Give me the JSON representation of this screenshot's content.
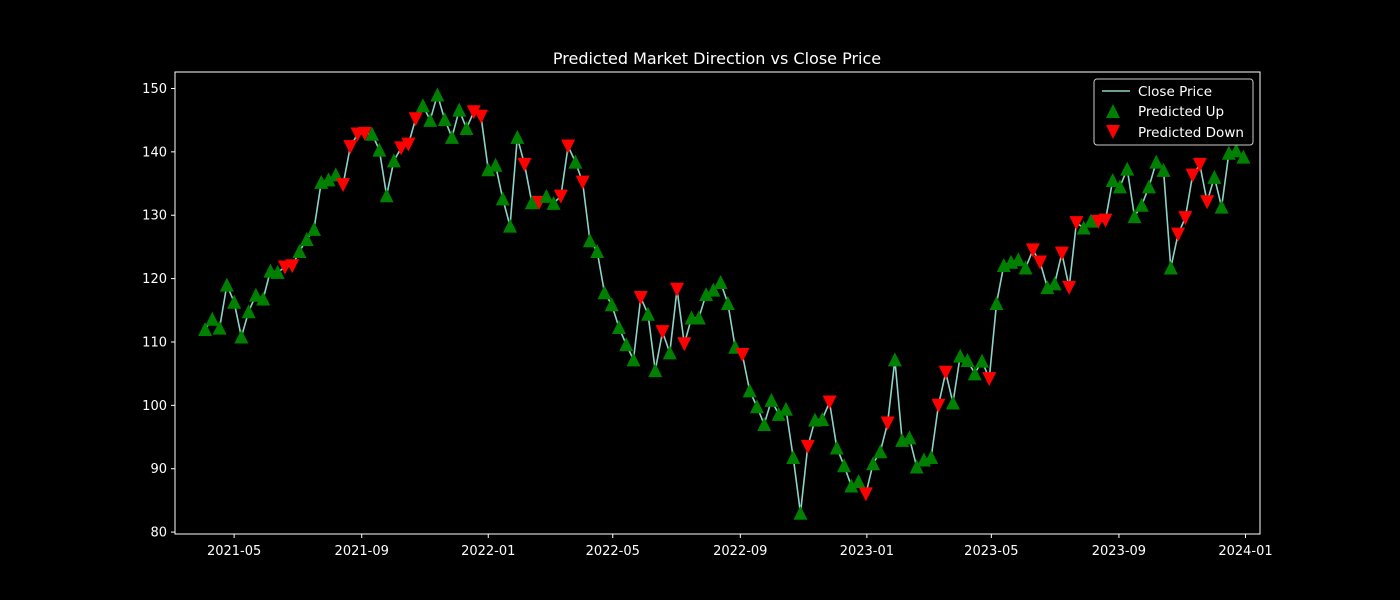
{
  "chart_data": {
    "type": "line",
    "title": "Predicted Market Direction vs Close Price",
    "xlabel": "",
    "ylabel": "",
    "x_tick_labels": [
      "2021-05",
      "2021-09",
      "2022-01",
      "2022-05",
      "2022-09",
      "2023-01",
      "2023-05",
      "2023-09",
      "2024-01"
    ],
    "x_tick_dates": [
      "2021-05-01",
      "2021-09-01",
      "2022-01-01",
      "2022-05-01",
      "2022-09-01",
      "2023-01-01",
      "2023-05-01",
      "2023-09-01",
      "2024-01-01"
    ],
    "y_ticks": [
      80,
      90,
      100,
      110,
      120,
      130,
      140,
      150
    ],
    "ylim": [
      79.7,
      152.6
    ],
    "xlim": [
      "2021-03-05",
      "2024-01-15"
    ],
    "grid": false,
    "legend_position": "top-right",
    "colors": {
      "background": "#000000",
      "line": "#8dd3c7",
      "up": "#008000",
      "down": "#ff0000",
      "text": "#ffffff"
    },
    "series": [
      {
        "name": "Close Price",
        "kind": "line",
        "points": [
          {
            "x": "2021-04-03",
            "y": 112.0,
            "d": "up"
          },
          {
            "x": "2021-04-10",
            "y": 113.6,
            "d": "up"
          },
          {
            "x": "2021-04-17",
            "y": 112.2,
            "d": "up"
          },
          {
            "x": "2021-04-24",
            "y": 119.0,
            "d": "up"
          },
          {
            "x": "2021-05-01",
            "y": 116.3,
            "d": "up"
          },
          {
            "x": "2021-05-08",
            "y": 110.8,
            "d": "up"
          },
          {
            "x": "2021-05-15",
            "y": 114.8,
            "d": "up"
          },
          {
            "x": "2021-05-22",
            "y": 117.4,
            "d": "up"
          },
          {
            "x": "2021-05-29",
            "y": 116.8,
            "d": "up"
          },
          {
            "x": "2021-06-05",
            "y": 121.2,
            "d": "up"
          },
          {
            "x": "2021-06-12",
            "y": 121.0,
            "d": "up"
          },
          {
            "x": "2021-06-19",
            "y": 121.8,
            "d": "down"
          },
          {
            "x": "2021-06-26",
            "y": 122.0,
            "d": "down"
          },
          {
            "x": "2021-07-03",
            "y": 124.3,
            "d": "up"
          },
          {
            "x": "2021-07-10",
            "y": 126.2,
            "d": "up"
          },
          {
            "x": "2021-07-17",
            "y": 127.8,
            "d": "up"
          },
          {
            "x": "2021-07-24",
            "y": 135.2,
            "d": "up"
          },
          {
            "x": "2021-07-31",
            "y": 135.6,
            "d": "up"
          },
          {
            "x": "2021-08-07",
            "y": 136.4,
            "d": "up"
          },
          {
            "x": "2021-08-14",
            "y": 134.8,
            "d": "down"
          },
          {
            "x": "2021-08-21",
            "y": 140.8,
            "d": "down"
          },
          {
            "x": "2021-08-28",
            "y": 142.8,
            "d": "down"
          },
          {
            "x": "2021-09-04",
            "y": 142.9,
            "d": "down"
          },
          {
            "x": "2021-09-11",
            "y": 142.8,
            "d": "up"
          },
          {
            "x": "2021-09-18",
            "y": 140.3,
            "d": "up"
          },
          {
            "x": "2021-09-25",
            "y": 133.1,
            "d": "up"
          },
          {
            "x": "2021-10-02",
            "y": 138.6,
            "d": "up"
          },
          {
            "x": "2021-10-09",
            "y": 140.6,
            "d": "down"
          },
          {
            "x": "2021-10-16",
            "y": 141.2,
            "d": "down"
          },
          {
            "x": "2021-10-23",
            "y": 145.2,
            "d": "down"
          },
          {
            "x": "2021-10-30",
            "y": 147.3,
            "d": "up"
          },
          {
            "x": "2021-11-06",
            "y": 145.0,
            "d": "up"
          },
          {
            "x": "2021-11-13",
            "y": 149.0,
            "d": "up"
          },
          {
            "x": "2021-11-20",
            "y": 145.1,
            "d": "up"
          },
          {
            "x": "2021-11-27",
            "y": 142.3,
            "d": "up"
          },
          {
            "x": "2021-12-04",
            "y": 146.6,
            "d": "up"
          },
          {
            "x": "2021-12-11",
            "y": 143.7,
            "d": "up"
          },
          {
            "x": "2021-12-18",
            "y": 146.3,
            "d": "down"
          },
          {
            "x": "2021-12-25",
            "y": 145.6,
            "d": "down"
          },
          {
            "x": "2022-01-01",
            "y": 137.2,
            "d": "up"
          },
          {
            "x": "2022-01-08",
            "y": 137.9,
            "d": "up"
          },
          {
            "x": "2022-01-15",
            "y": 132.6,
            "d": "up"
          },
          {
            "x": "2022-01-22",
            "y": 128.3,
            "d": "up"
          },
          {
            "x": "2022-01-29",
            "y": 142.3,
            "d": "up"
          },
          {
            "x": "2022-02-05",
            "y": 138.0,
            "d": "down"
          },
          {
            "x": "2022-02-12",
            "y": 132.0,
            "d": "up"
          },
          {
            "x": "2022-02-19",
            "y": 132.0,
            "d": "down"
          },
          {
            "x": "2022-02-26",
            "y": 133.0,
            "d": "up"
          },
          {
            "x": "2022-03-05",
            "y": 131.9,
            "d": "up"
          },
          {
            "x": "2022-03-12",
            "y": 133.0,
            "d": "down"
          },
          {
            "x": "2022-03-19",
            "y": 140.9,
            "d": "down"
          },
          {
            "x": "2022-03-26",
            "y": 138.4,
            "d": "up"
          },
          {
            "x": "2022-04-02",
            "y": 135.2,
            "d": "down"
          },
          {
            "x": "2022-04-09",
            "y": 126.0,
            "d": "up"
          },
          {
            "x": "2022-04-16",
            "y": 124.3,
            "d": "up"
          },
          {
            "x": "2022-04-23",
            "y": 117.8,
            "d": "up"
          },
          {
            "x": "2022-04-30",
            "y": 115.9,
            "d": "up"
          },
          {
            "x": "2022-05-07",
            "y": 112.3,
            "d": "up"
          },
          {
            "x": "2022-05-14",
            "y": 109.6,
            "d": "up"
          },
          {
            "x": "2022-05-21",
            "y": 107.2,
            "d": "up"
          },
          {
            "x": "2022-05-28",
            "y": 117.0,
            "d": "down"
          },
          {
            "x": "2022-06-04",
            "y": 114.4,
            "d": "up"
          },
          {
            "x": "2022-06-11",
            "y": 105.5,
            "d": "up"
          },
          {
            "x": "2022-06-18",
            "y": 111.6,
            "d": "down"
          },
          {
            "x": "2022-06-25",
            "y": 108.3,
            "d": "up"
          },
          {
            "x": "2022-07-02",
            "y": 118.3,
            "d": "down"
          },
          {
            "x": "2022-07-09",
            "y": 109.7,
            "d": "down"
          },
          {
            "x": "2022-07-16",
            "y": 113.8,
            "d": "up"
          },
          {
            "x": "2022-07-23",
            "y": 113.8,
            "d": "up"
          },
          {
            "x": "2022-07-30",
            "y": 117.5,
            "d": "up"
          },
          {
            "x": "2022-08-06",
            "y": 118.2,
            "d": "up"
          },
          {
            "x": "2022-08-13",
            "y": 119.4,
            "d": "up"
          },
          {
            "x": "2022-08-20",
            "y": 116.1,
            "d": "up"
          },
          {
            "x": "2022-08-27",
            "y": 109.2,
            "d": "up"
          },
          {
            "x": "2022-09-03",
            "y": 108.0,
            "d": "down"
          },
          {
            "x": "2022-09-10",
            "y": 102.3,
            "d": "up"
          },
          {
            "x": "2022-09-17",
            "y": 99.8,
            "d": "up"
          },
          {
            "x": "2022-09-24",
            "y": 97.0,
            "d": "up"
          },
          {
            "x": "2022-10-01",
            "y": 100.8,
            "d": "up"
          },
          {
            "x": "2022-10-08",
            "y": 98.6,
            "d": "up"
          },
          {
            "x": "2022-10-15",
            "y": 99.4,
            "d": "up"
          },
          {
            "x": "2022-10-22",
            "y": 91.8,
            "d": "up"
          },
          {
            "x": "2022-10-29",
            "y": 83.0,
            "d": "up"
          },
          {
            "x": "2022-11-05",
            "y": 93.5,
            "d": "down"
          },
          {
            "x": "2022-11-12",
            "y": 97.7,
            "d": "up"
          },
          {
            "x": "2022-11-19",
            "y": 97.8,
            "d": "up"
          },
          {
            "x": "2022-11-26",
            "y": 100.5,
            "d": "down"
          },
          {
            "x": "2022-12-03",
            "y": 93.3,
            "d": "up"
          },
          {
            "x": "2022-12-10",
            "y": 90.5,
            "d": "up"
          },
          {
            "x": "2022-12-17",
            "y": 87.3,
            "d": "up"
          },
          {
            "x": "2022-12-24",
            "y": 88.0,
            "d": "up"
          },
          {
            "x": "2022-12-31",
            "y": 86.0,
            "d": "down"
          },
          {
            "x": "2023-01-07",
            "y": 90.8,
            "d": "up"
          },
          {
            "x": "2023-01-14",
            "y": 92.7,
            "d": "up"
          },
          {
            "x": "2023-01-21",
            "y": 97.2,
            "d": "down"
          },
          {
            "x": "2023-01-28",
            "y": 107.2,
            "d": "up"
          },
          {
            "x": "2023-02-04",
            "y": 94.5,
            "d": "up"
          },
          {
            "x": "2023-02-11",
            "y": 94.9,
            "d": "up"
          },
          {
            "x": "2023-02-18",
            "y": 90.3,
            "d": "up"
          },
          {
            "x": "2023-02-25",
            "y": 91.4,
            "d": "up"
          },
          {
            "x": "2023-03-04",
            "y": 91.8,
            "d": "up"
          },
          {
            "x": "2023-03-11",
            "y": 100.0,
            "d": "down"
          },
          {
            "x": "2023-03-18",
            "y": 105.2,
            "d": "down"
          },
          {
            "x": "2023-03-25",
            "y": 100.4,
            "d": "up"
          },
          {
            "x": "2023-04-01",
            "y": 107.8,
            "d": "up"
          },
          {
            "x": "2023-04-08",
            "y": 107.1,
            "d": "up"
          },
          {
            "x": "2023-04-15",
            "y": 105.0,
            "d": "up"
          },
          {
            "x": "2023-04-22",
            "y": 107.0,
            "d": "up"
          },
          {
            "x": "2023-04-29",
            "y": 104.2,
            "d": "down"
          },
          {
            "x": "2023-05-06",
            "y": 116.1,
            "d": "up"
          },
          {
            "x": "2023-05-13",
            "y": 122.1,
            "d": "up"
          },
          {
            "x": "2023-05-20",
            "y": 122.6,
            "d": "up"
          },
          {
            "x": "2023-05-27",
            "y": 123.0,
            "d": "up"
          },
          {
            "x": "2023-06-03",
            "y": 121.7,
            "d": "up"
          },
          {
            "x": "2023-06-10",
            "y": 124.5,
            "d": "down"
          },
          {
            "x": "2023-06-17",
            "y": 122.6,
            "d": "down"
          },
          {
            "x": "2023-06-24",
            "y": 118.6,
            "d": "up"
          },
          {
            "x": "2023-07-01",
            "y": 119.2,
            "d": "up"
          },
          {
            "x": "2023-07-08",
            "y": 124.0,
            "d": "down"
          },
          {
            "x": "2023-07-15",
            "y": 118.6,
            "d": "down"
          },
          {
            "x": "2023-07-22",
            "y": 128.8,
            "d": "down"
          },
          {
            "x": "2023-07-29",
            "y": 128.0,
            "d": "up"
          },
          {
            "x": "2023-08-05",
            "y": 129.1,
            "d": "up"
          },
          {
            "x": "2023-08-12",
            "y": 129.0,
            "d": "down"
          },
          {
            "x": "2023-08-19",
            "y": 129.2,
            "d": "down"
          },
          {
            "x": "2023-08-26",
            "y": 135.5,
            "d": "up"
          },
          {
            "x": "2023-09-02",
            "y": 134.5,
            "d": "up"
          },
          {
            "x": "2023-09-09",
            "y": 137.3,
            "d": "up"
          },
          {
            "x": "2023-09-16",
            "y": 129.8,
            "d": "up"
          },
          {
            "x": "2023-09-23",
            "y": 131.6,
            "d": "up"
          },
          {
            "x": "2023-09-30",
            "y": 134.5,
            "d": "up"
          },
          {
            "x": "2023-10-07",
            "y": 138.4,
            "d": "up"
          },
          {
            "x": "2023-10-14",
            "y": 137.1,
            "d": "up"
          },
          {
            "x": "2023-10-21",
            "y": 121.7,
            "d": "up"
          },
          {
            "x": "2023-10-28",
            "y": 127.0,
            "d": "down"
          },
          {
            "x": "2023-11-04",
            "y": 129.6,
            "d": "down"
          },
          {
            "x": "2023-11-11",
            "y": 136.3,
            "d": "down"
          },
          {
            "x": "2023-11-18",
            "y": 138.0,
            "d": "down"
          },
          {
            "x": "2023-11-25",
            "y": 132.1,
            "d": "down"
          },
          {
            "x": "2023-12-02",
            "y": 136.0,
            "d": "up"
          },
          {
            "x": "2023-12-09",
            "y": 131.3,
            "d": "up"
          },
          {
            "x": "2023-12-16",
            "y": 139.8,
            "d": "up"
          },
          {
            "x": "2023-12-23",
            "y": 140.2,
            "d": "up"
          },
          {
            "x": "2023-12-30",
            "y": 139.2,
            "d": "up"
          }
        ]
      },
      {
        "name": "Predicted Up",
        "kind": "marker",
        "marker": "triangle-up",
        "filter": "up"
      },
      {
        "name": "Predicted Down",
        "kind": "marker",
        "marker": "triangle-down",
        "filter": "down"
      }
    ]
  }
}
